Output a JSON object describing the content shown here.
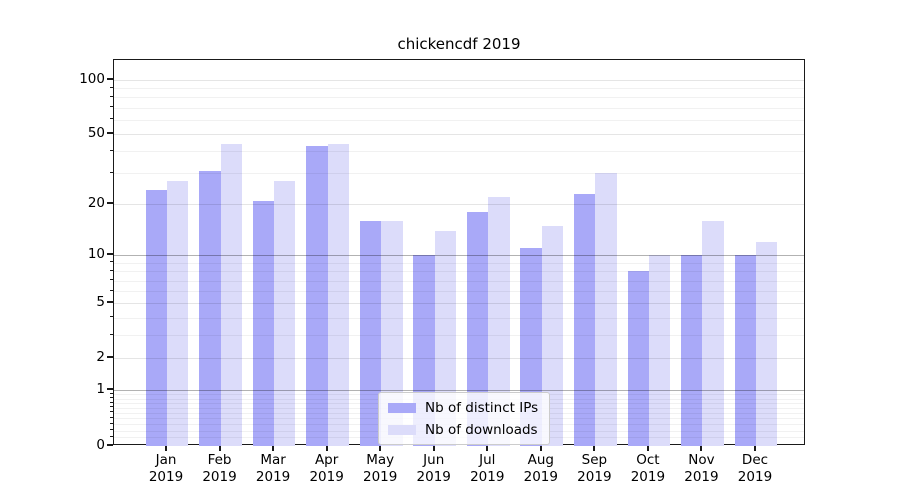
{
  "chart_data": {
    "type": "bar",
    "title": "chickencdf 2019",
    "categories": [
      "Jan 2019",
      "Feb 2019",
      "Mar 2019",
      "Apr 2019",
      "May 2019",
      "Jun 2019",
      "Jul 2019",
      "Aug 2019",
      "Sep 2019",
      "Oct 2019",
      "Nov 2019",
      "Dec 2019"
    ],
    "month_labels": [
      "Jan",
      "Feb",
      "Mar",
      "Apr",
      "May",
      "Jun",
      "Jul",
      "Aug",
      "Sep",
      "Oct",
      "Nov",
      "Dec"
    ],
    "year_label": "2019",
    "series": [
      {
        "name": "Nb of distinct IPs",
        "color": "#a9a9f8",
        "values": [
          24,
          31,
          21,
          43,
          16,
          10,
          18,
          11,
          23,
          8,
          10,
          10
        ]
      },
      {
        "name": "Nb of downloads",
        "color": "#dcdcfa",
        "values": [
          27,
          44,
          27,
          44,
          16,
          14,
          22,
          15,
          30,
          10,
          16,
          12
        ]
      }
    ],
    "yscale": "log1p",
    "ylim": [
      0,
      129
    ],
    "ytick_labels": [
      "100",
      "50",
      "20",
      "10",
      "5",
      "2",
      "1",
      "0"
    ],
    "ytick_values": [
      100,
      50,
      20,
      10,
      5,
      2,
      1,
      0
    ],
    "strong_gridline_values": [
      10,
      1
    ],
    "light_gridline_values": [
      100,
      50,
      20,
      5,
      2
    ],
    "minor_gridline_values": [
      90,
      80,
      70,
      60,
      40,
      30,
      9,
      8,
      7,
      6,
      4,
      3,
      0.9,
      0.8,
      0.7,
      0.6,
      0.5,
      0.4,
      0.3,
      0.2,
      0.1
    ],
    "grid": true,
    "legend_position": "lower center"
  }
}
